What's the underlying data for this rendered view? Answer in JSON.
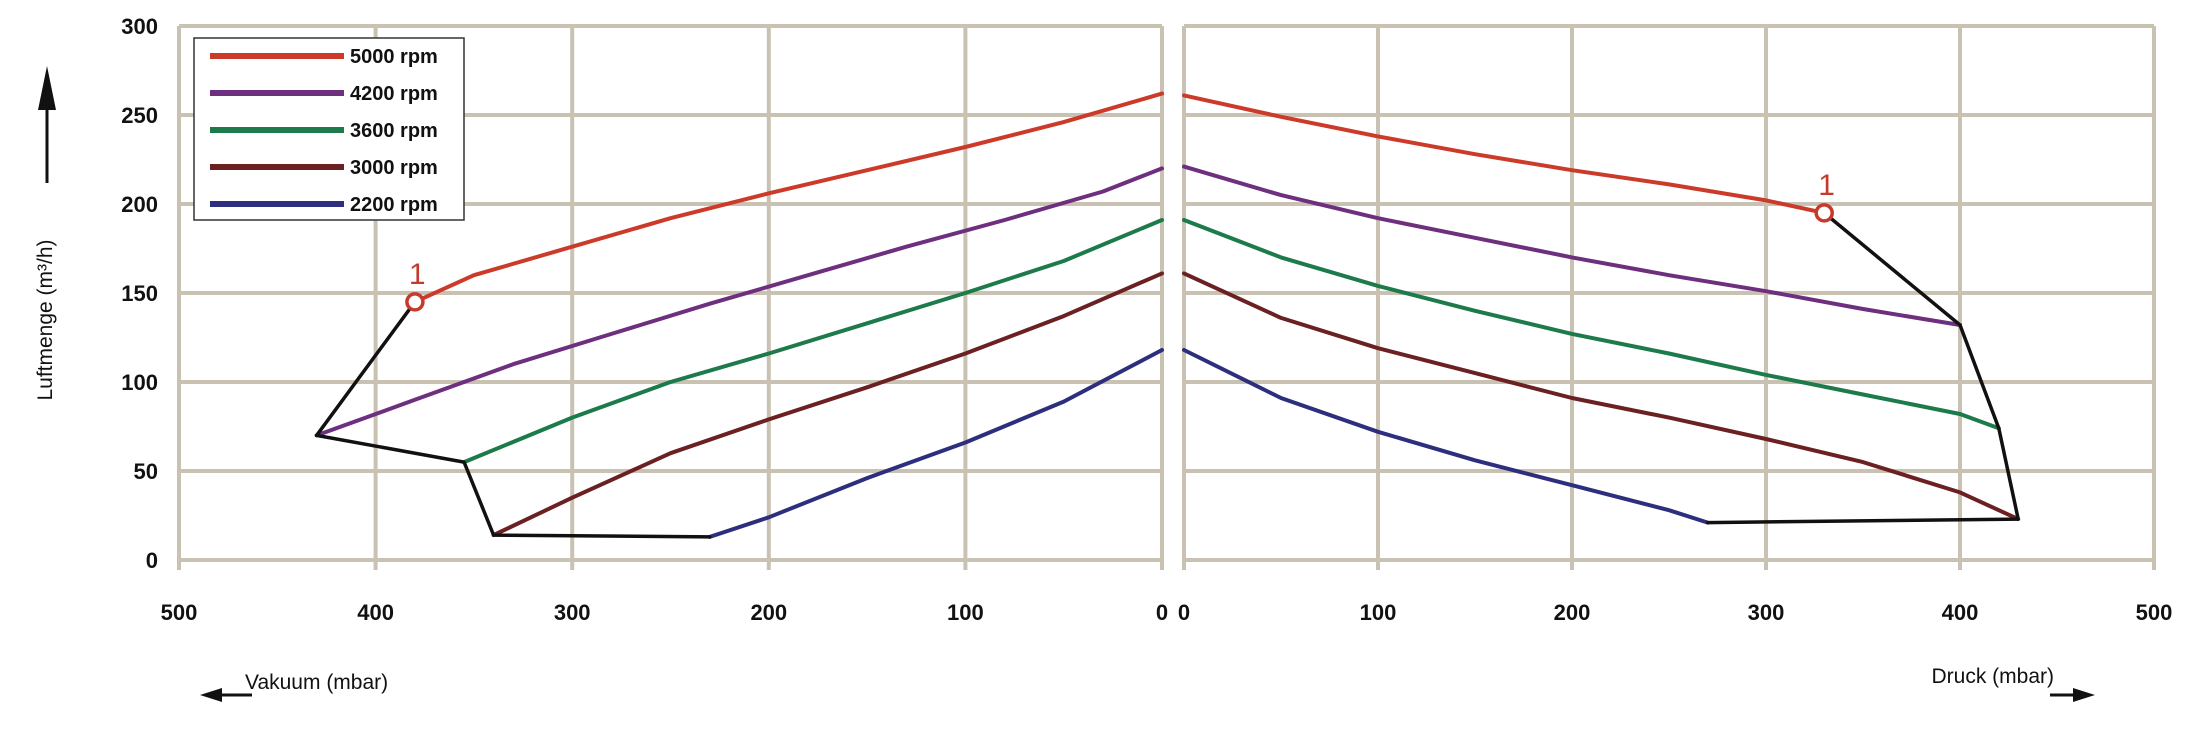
{
  "chart_data": {
    "type": "line",
    "ylabel": "Luftmenge (m³/h)",
    "ylim": [
      0,
      300
    ],
    "yticks": [
      "0",
      "50",
      "100",
      "150",
      "200",
      "250",
      "300"
    ],
    "grid": true,
    "legend_position": "top-left",
    "panels": [
      {
        "id": "vakuum",
        "xlabel": "Vakuum (mbar)",
        "xlim": [
          500,
          0
        ],
        "xticks": [
          "500",
          "400",
          "300",
          "200",
          "100",
          "0"
        ],
        "series": [
          {
            "name": "5000 rpm",
            "color": "#cc3a2a",
            "x": [
              380,
              350,
              300,
              250,
              200,
              150,
              100,
              50,
              0
            ],
            "y": [
              145,
              160,
              176,
              192,
              206,
              219,
              232,
              246,
              262
            ]
          },
          {
            "name": "4200 rpm",
            "color": "#6d2f7e",
            "x": [
              430,
              380,
              330,
              280,
              230,
              180,
              130,
              80,
              30,
              0
            ],
            "y": [
              70,
              90,
              110,
              127,
              144,
              160,
              176,
              191,
              207,
              220
            ]
          },
          {
            "name": "3600 rpm",
            "color": "#1d7a4a",
            "x": [
              355,
              300,
              250,
              200,
              150,
              100,
              50,
              0
            ],
            "y": [
              55,
              80,
              100,
              116,
              133,
              150,
              168,
              191
            ]
          },
          {
            "name": "3000 rpm",
            "color": "#6b2022",
            "x": [
              340,
              300,
              250,
              200,
              150,
              100,
              50,
              0
            ],
            "y": [
              14,
              35,
              60,
              79,
              97,
              116,
              137,
              161
            ]
          },
          {
            "name": "2200 rpm",
            "color": "#2d2f7e",
            "x": [
              230,
              200,
              150,
              100,
              50,
              0
            ],
            "y": [
              13,
              24,
              46,
              66,
              89,
              118
            ]
          }
        ],
        "envelope": {
          "color": "#111111",
          "x": [
            380,
            430,
            355,
            340,
            230
          ],
          "y": [
            145,
            70,
            55,
            14,
            13
          ]
        },
        "marker": {
          "label": "1",
          "x": 380,
          "y": 145
        }
      },
      {
        "id": "druck",
        "xlabel": "Druck (mbar)",
        "xlim": [
          0,
          500
        ],
        "xticks": [
          "0",
          "100",
          "200",
          "300",
          "400",
          "500"
        ],
        "series": [
          {
            "name": "5000 rpm",
            "color": "#cc3a2a",
            "x": [
              0,
              50,
              100,
              150,
              200,
              250,
              300,
              330
            ],
            "y": [
              261,
              249,
              238,
              228,
              219,
              211,
              202,
              195
            ]
          },
          {
            "name": "4200 rpm",
            "color": "#6d2f7e",
            "x": [
              0,
              50,
              100,
              150,
              200,
              250,
              300,
              350,
              400
            ],
            "y": [
              221,
              205,
              192,
              181,
              170,
              160,
              151,
              141,
              132
            ]
          },
          {
            "name": "3600 rpm",
            "color": "#1d7a4a",
            "x": [
              0,
              50,
              100,
              150,
              200,
              250,
              300,
              350,
              400,
              420
            ],
            "y": [
              191,
              170,
              154,
              140,
              127,
              116,
              104,
              93,
              82,
              74
            ]
          },
          {
            "name": "3000 rpm",
            "color": "#6b2022",
            "x": [
              0,
              50,
              100,
              150,
              200,
              250,
              300,
              350,
              400,
              430
            ],
            "y": [
              161,
              136,
              119,
              105,
              91,
              80,
              68,
              55,
              38,
              23
            ]
          },
          {
            "name": "2200 rpm",
            "color": "#2d2f7e",
            "x": [
              0,
              50,
              100,
              150,
              200,
              250,
              270
            ],
            "y": [
              118,
              91,
              72,
              56,
              42,
              28,
              21
            ]
          }
        ],
        "envelope": {
          "color": "#111111",
          "x": [
            330,
            400,
            420,
            430,
            270
          ],
          "y": [
            195,
            132,
            74,
            23,
            21
          ]
        },
        "marker": {
          "label": "1",
          "x": 330,
          "y": 195
        }
      }
    ]
  }
}
